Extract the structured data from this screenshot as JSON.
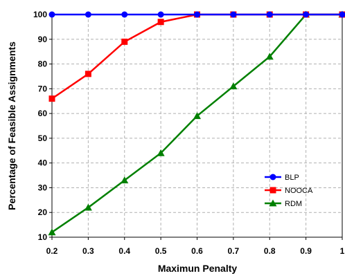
{
  "chart_data": {
    "type": "line",
    "xlabel": "Maximun Penalty",
    "ylabel": "Percentage of Feasible Assignments",
    "x": [
      0.2,
      0.3,
      0.4,
      0.5,
      0.6,
      0.7,
      0.8,
      0.9,
      1
    ],
    "x_tick_labels": [
      "0.2",
      "0.3",
      "0.4",
      "0.5",
      "0.6",
      "0.7",
      "0.8",
      "0.9",
      "1"
    ],
    "y_ticks": [
      10,
      20,
      30,
      40,
      50,
      60,
      70,
      80,
      90,
      100
    ],
    "xlim": [
      0.2,
      1
    ],
    "ylim": [
      10,
      100
    ],
    "grid": true,
    "legend_position": "right",
    "series": [
      {
        "name": "BLP",
        "color": "#0000ff",
        "marker": "circle",
        "values": [
          100,
          100,
          100,
          100,
          100,
          100,
          100,
          100,
          100
        ]
      },
      {
        "name": "NOOCA",
        "color": "#ff0000",
        "marker": "square",
        "values": [
          66,
          76,
          89,
          97,
          100,
          100,
          100,
          100,
          100
        ]
      },
      {
        "name": "RDM",
        "color": "#008000",
        "marker": "triangle",
        "values": [
          12,
          22,
          33,
          44,
          59,
          71,
          83,
          100,
          100
        ]
      }
    ]
  }
}
